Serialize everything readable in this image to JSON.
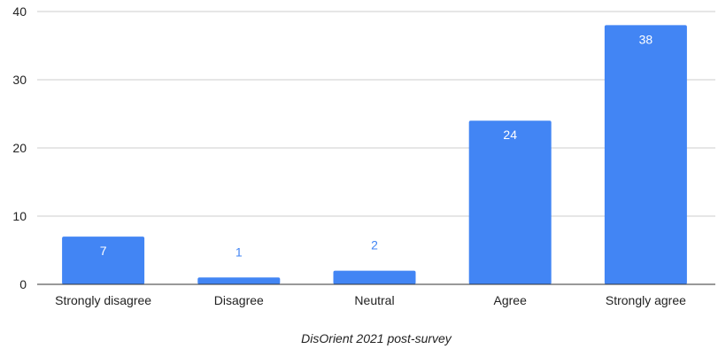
{
  "chart_data": {
    "type": "bar",
    "title": "",
    "xlabel": "DisOrient 2021 post-survey",
    "ylabel": "",
    "categories": [
      "Strongly disagree",
      "Disagree",
      "Neutral",
      "Agree",
      "Strongly agree"
    ],
    "values": [
      7,
      1,
      2,
      24,
      38
    ],
    "ylim": [
      0,
      40
    ],
    "yticks": [
      0,
      10,
      20,
      30,
      40
    ],
    "grid": true,
    "legend": "none",
    "colors": {
      "bar": "#4285f4",
      "label_inside": "#ffffff",
      "label_above": "#4285f4",
      "gridline": "#cccccc",
      "baseline": "#333333"
    }
  }
}
